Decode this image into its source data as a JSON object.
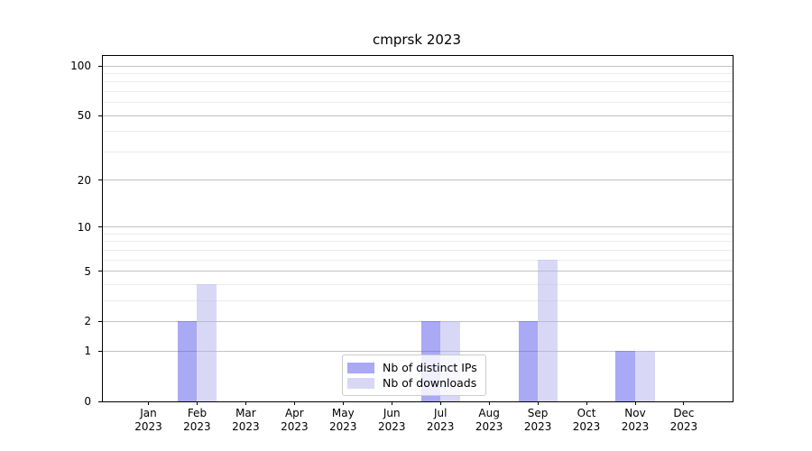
{
  "chart_data": {
    "type": "bar",
    "title": "cmprsk 2023",
    "categories": [
      {
        "month": "Jan",
        "year": "2023"
      },
      {
        "month": "Feb",
        "year": "2023"
      },
      {
        "month": "Mar",
        "year": "2023"
      },
      {
        "month": "Apr",
        "year": "2023"
      },
      {
        "month": "May",
        "year": "2023"
      },
      {
        "month": "Jun",
        "year": "2023"
      },
      {
        "month": "Jul",
        "year": "2023"
      },
      {
        "month": "Aug",
        "year": "2023"
      },
      {
        "month": "Sep",
        "year": "2023"
      },
      {
        "month": "Oct",
        "year": "2023"
      },
      {
        "month": "Nov",
        "year": "2023"
      },
      {
        "month": "Dec",
        "year": "2023"
      }
    ],
    "series": [
      {
        "name": "Nb of distinct IPs",
        "color": "#5454ee",
        "alpha": 0.5,
        "values": [
          0,
          2,
          0,
          0,
          0,
          0,
          2,
          0,
          2,
          0,
          1,
          0
        ]
      },
      {
        "name": "Nb of downloads",
        "color": "#b2b2ee",
        "alpha": 0.5,
        "values": [
          0,
          4,
          0,
          0,
          0,
          0,
          2,
          0,
          6,
          0,
          1,
          0
        ]
      }
    ],
    "y_axis": {
      "scale": "log1p",
      "ylim": [
        0,
        115
      ],
      "major_ticks": [
        0,
        1,
        2,
        5,
        10,
        20,
        50,
        100
      ],
      "minor_ticks": [
        3,
        4,
        6,
        7,
        8,
        9,
        30,
        40,
        60,
        70,
        80,
        90
      ]
    },
    "legend": {
      "position": "lower center"
    },
    "grid": "horizontal",
    "colors": {
      "major_grid": "#c2c2c2",
      "minor_grid": "#ececec",
      "spine": "#000000"
    }
  }
}
